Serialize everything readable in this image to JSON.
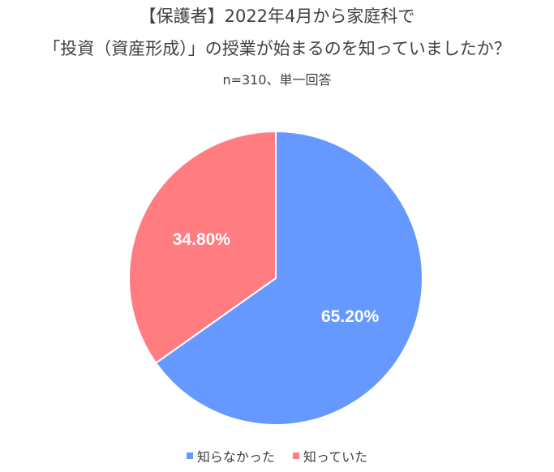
{
  "title_line1": "【保護者】2022年4月から家庭科で",
  "title_line2": "「投資（資産形成）」の授業が始まるのを知っていましたか？",
  "subtitle": "n=310、単一回答",
  "chart_data": {
    "type": "pie",
    "title": "【保護者】2022年4月から家庭科で「投資（資産形成）」の授業が始まるのを知っていましたか？",
    "subtitle": "n=310、単一回答",
    "slices": [
      {
        "name": "知らなかった",
        "value": 65.2,
        "label": "65.20%",
        "color": "#6699ff"
      },
      {
        "name": "知っていた",
        "value": 34.8,
        "label": "34.80%",
        "color": "#ff7c80"
      }
    ],
    "legend_position": "bottom"
  }
}
